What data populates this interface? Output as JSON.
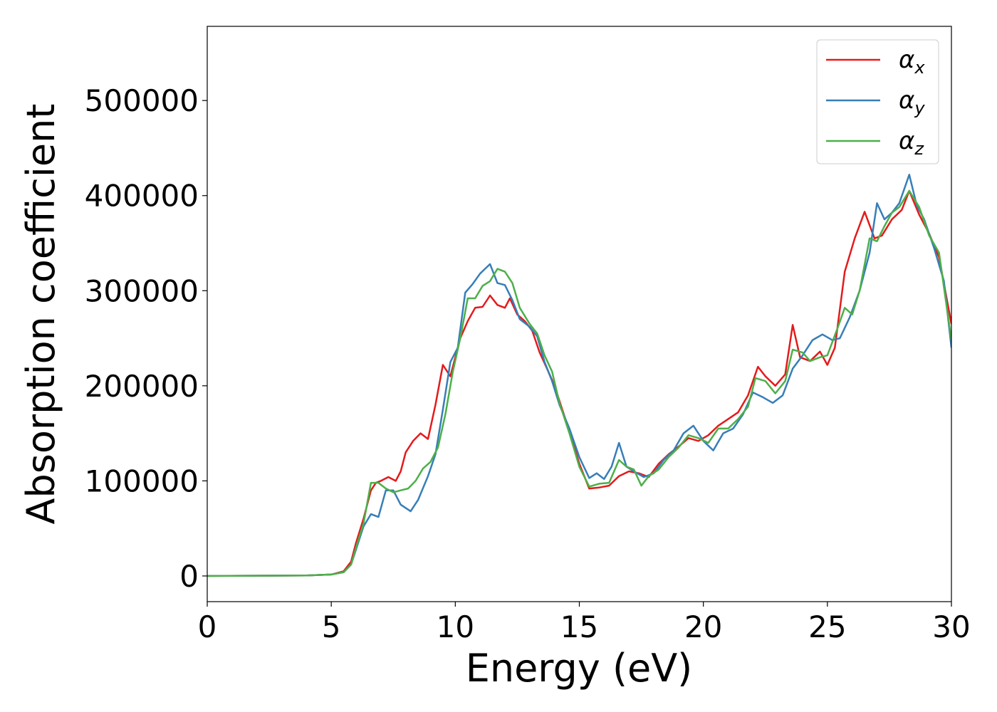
{
  "chart_data": {
    "type": "line",
    "title": "",
    "xlabel": "Energy (eV)",
    "ylabel": "Absorption coefficient",
    "xlim": [
      0,
      30
    ],
    "ylim": [
      -27000,
      578000
    ],
    "xticks": [
      0,
      5,
      10,
      15,
      20,
      25,
      30
    ],
    "xtick_labels": [
      "0",
      "5",
      "10",
      "15",
      "20",
      "25",
      "30"
    ],
    "yticks": [
      0,
      100000,
      200000,
      300000,
      400000,
      500000
    ],
    "ytick_labels": [
      "0",
      "100000",
      "200000",
      "300000",
      "400000",
      "500000"
    ],
    "grid": false,
    "legend_position": "top-right",
    "legend": [
      {
        "base": "α",
        "sub": "x"
      },
      {
        "base": "α",
        "sub": "y"
      },
      {
        "base": "α",
        "sub": "z"
      }
    ],
    "series": [
      {
        "name": "αx",
        "color": "#e41a1c",
        "points": [
          [
            0,
            0
          ],
          [
            4,
            500
          ],
          [
            5,
            1500
          ],
          [
            5.5,
            5000
          ],
          [
            5.8,
            15000
          ],
          [
            6,
            35000
          ],
          [
            6.3,
            60000
          ],
          [
            6.6,
            90000
          ],
          [
            6.8,
            98000
          ],
          [
            7.0,
            100000
          ],
          [
            7.3,
            104000
          ],
          [
            7.6,
            100000
          ],
          [
            7.8,
            110000
          ],
          [
            8.0,
            130000
          ],
          [
            8.3,
            142000
          ],
          [
            8.6,
            150000
          ],
          [
            8.9,
            144000
          ],
          [
            9.2,
            180000
          ],
          [
            9.5,
            222000
          ],
          [
            9.8,
            210000
          ],
          [
            10.2,
            250000
          ],
          [
            10.5,
            268000
          ],
          [
            10.8,
            282000
          ],
          [
            11.1,
            283000
          ],
          [
            11.4,
            295000
          ],
          [
            11.7,
            285000
          ],
          [
            12.0,
            282000
          ],
          [
            12.2,
            292000
          ],
          [
            12.5,
            275000
          ],
          [
            12.8,
            268000
          ],
          [
            13.1,
            258000
          ],
          [
            13.4,
            235000
          ],
          [
            13.7,
            218000
          ],
          [
            14.0,
            200000
          ],
          [
            14.3,
            176000
          ],
          [
            14.6,
            152000
          ],
          [
            15.0,
            118000
          ],
          [
            15.4,
            92000
          ],
          [
            15.8,
            93000
          ],
          [
            16.2,
            95000
          ],
          [
            16.6,
            105000
          ],
          [
            17.0,
            110000
          ],
          [
            17.4,
            108000
          ],
          [
            17.8,
            104000
          ],
          [
            18.2,
            118000
          ],
          [
            18.6,
            128000
          ],
          [
            19.0,
            136000
          ],
          [
            19.4,
            145000
          ],
          [
            19.8,
            142000
          ],
          [
            20.2,
            148000
          ],
          [
            20.6,
            158000
          ],
          [
            21.0,
            165000
          ],
          [
            21.4,
            172000
          ],
          [
            21.8,
            190000
          ],
          [
            22.2,
            220000
          ],
          [
            22.5,
            210000
          ],
          [
            22.9,
            200000
          ],
          [
            23.3,
            212000
          ],
          [
            23.6,
            264000
          ],
          [
            23.9,
            230000
          ],
          [
            24.3,
            226000
          ],
          [
            24.7,
            236000
          ],
          [
            25.0,
            222000
          ],
          [
            25.3,
            240000
          ],
          [
            25.7,
            320000
          ],
          [
            26.1,
            355000
          ],
          [
            26.5,
            383000
          ],
          [
            26.9,
            355000
          ],
          [
            27.2,
            358000
          ],
          [
            27.6,
            375000
          ],
          [
            28.0,
            385000
          ],
          [
            28.3,
            405000
          ],
          [
            28.7,
            380000
          ],
          [
            29.1,
            360000
          ],
          [
            29.5,
            335000
          ],
          [
            30.0,
            265000
          ]
        ]
      },
      {
        "name": "αy",
        "color": "#377eb8",
        "points": [
          [
            0,
            0
          ],
          [
            4,
            500
          ],
          [
            5,
            1500
          ],
          [
            5.5,
            4000
          ],
          [
            5.8,
            12000
          ],
          [
            6,
            28000
          ],
          [
            6.3,
            52000
          ],
          [
            6.6,
            65000
          ],
          [
            6.9,
            62000
          ],
          [
            7.2,
            90000
          ],
          [
            7.5,
            90000
          ],
          [
            7.8,
            75000
          ],
          [
            8.2,
            68000
          ],
          [
            8.5,
            80000
          ],
          [
            8.9,
            105000
          ],
          [
            9.2,
            128000
          ],
          [
            9.5,
            175000
          ],
          [
            9.8,
            225000
          ],
          [
            10.1,
            240000
          ],
          [
            10.4,
            298000
          ],
          [
            10.7,
            307000
          ],
          [
            11.0,
            318000
          ],
          [
            11.4,
            328000
          ],
          [
            11.7,
            308000
          ],
          [
            12.0,
            306000
          ],
          [
            12.3,
            290000
          ],
          [
            12.6,
            270000
          ],
          [
            13.0,
            262000
          ],
          [
            13.3,
            252000
          ],
          [
            13.6,
            225000
          ],
          [
            13.9,
            205000
          ],
          [
            14.2,
            180000
          ],
          [
            14.6,
            155000
          ],
          [
            15.0,
            125000
          ],
          [
            15.4,
            103000
          ],
          [
            15.7,
            108000
          ],
          [
            16.0,
            102000
          ],
          [
            16.3,
            115000
          ],
          [
            16.6,
            140000
          ],
          [
            16.9,
            115000
          ],
          [
            17.2,
            110000
          ],
          [
            17.6,
            104000
          ],
          [
            18.0,
            108000
          ],
          [
            18.4,
            122000
          ],
          [
            18.8,
            132000
          ],
          [
            19.2,
            150000
          ],
          [
            19.6,
            158000
          ],
          [
            20.0,
            142000
          ],
          [
            20.4,
            132000
          ],
          [
            20.8,
            150000
          ],
          [
            21.2,
            155000
          ],
          [
            21.6,
            170000
          ],
          [
            22.0,
            193000
          ],
          [
            22.4,
            188000
          ],
          [
            22.8,
            182000
          ],
          [
            23.2,
            190000
          ],
          [
            23.6,
            218000
          ],
          [
            24.0,
            232000
          ],
          [
            24.4,
            248000
          ],
          [
            24.8,
            254000
          ],
          [
            25.2,
            248000
          ],
          [
            25.5,
            250000
          ],
          [
            25.9,
            272000
          ],
          [
            26.3,
            300000
          ],
          [
            26.7,
            340000
          ],
          [
            27.0,
            392000
          ],
          [
            27.3,
            375000
          ],
          [
            27.6,
            382000
          ],
          [
            27.9,
            392000
          ],
          [
            28.3,
            422000
          ],
          [
            28.6,
            390000
          ],
          [
            28.9,
            375000
          ],
          [
            29.3,
            345000
          ],
          [
            29.7,
            310000
          ],
          [
            30.0,
            240000
          ]
        ]
      },
      {
        "name": "αz",
        "color": "#4daf4a",
        "points": [
          [
            0,
            0
          ],
          [
            4,
            500
          ],
          [
            5,
            1500
          ],
          [
            5.5,
            4000
          ],
          [
            5.8,
            12000
          ],
          [
            6,
            30000
          ],
          [
            6.3,
            55000
          ],
          [
            6.6,
            98000
          ],
          [
            6.9,
            98000
          ],
          [
            7.2,
            92000
          ],
          [
            7.5,
            88000
          ],
          [
            7.8,
            90000
          ],
          [
            8.1,
            92000
          ],
          [
            8.4,
            100000
          ],
          [
            8.7,
            113000
          ],
          [
            9.0,
            120000
          ],
          [
            9.3,
            135000
          ],
          [
            9.6,
            170000
          ],
          [
            9.9,
            215000
          ],
          [
            10.2,
            250000
          ],
          [
            10.5,
            292000
          ],
          [
            10.8,
            292000
          ],
          [
            11.1,
            305000
          ],
          [
            11.4,
            310000
          ],
          [
            11.7,
            323000
          ],
          [
            12.0,
            320000
          ],
          [
            12.3,
            308000
          ],
          [
            12.6,
            282000
          ],
          [
            13.0,
            265000
          ],
          [
            13.3,
            255000
          ],
          [
            13.6,
            232000
          ],
          [
            13.9,
            215000
          ],
          [
            14.2,
            182000
          ],
          [
            14.6,
            150000
          ],
          [
            15.0,
            115000
          ],
          [
            15.4,
            94000
          ],
          [
            15.8,
            97000
          ],
          [
            16.2,
            98000
          ],
          [
            16.6,
            122000
          ],
          [
            16.9,
            115000
          ],
          [
            17.2,
            112000
          ],
          [
            17.5,
            95000
          ],
          [
            17.8,
            105000
          ],
          [
            18.2,
            112000
          ],
          [
            18.6,
            125000
          ],
          [
            19.0,
            135000
          ],
          [
            19.4,
            148000
          ],
          [
            19.8,
            145000
          ],
          [
            20.2,
            140000
          ],
          [
            20.6,
            155000
          ],
          [
            21.0,
            155000
          ],
          [
            21.4,
            165000
          ],
          [
            21.8,
            178000
          ],
          [
            22.1,
            208000
          ],
          [
            22.5,
            205000
          ],
          [
            22.9,
            192000
          ],
          [
            23.3,
            205000
          ],
          [
            23.6,
            238000
          ],
          [
            24.0,
            235000
          ],
          [
            24.3,
            226000
          ],
          [
            24.7,
            230000
          ],
          [
            25.0,
            232000
          ],
          [
            25.4,
            260000
          ],
          [
            25.7,
            282000
          ],
          [
            26.0,
            275000
          ],
          [
            26.3,
            300000
          ],
          [
            26.7,
            355000
          ],
          [
            27.0,
            352000
          ],
          [
            27.3,
            368000
          ],
          [
            27.6,
            382000
          ],
          [
            27.9,
            388000
          ],
          [
            28.3,
            405000
          ],
          [
            28.7,
            388000
          ],
          [
            29.1,
            358000
          ],
          [
            29.5,
            340000
          ],
          [
            30.0,
            248000
          ]
        ]
      }
    ]
  }
}
